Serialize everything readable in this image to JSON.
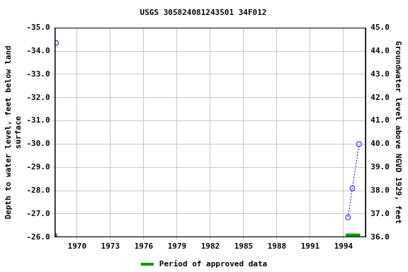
{
  "chart_data": {
    "type": "scatter",
    "title": "USGS 305824081243501 34F012",
    "y_label": "Depth to water level, feet below land surface",
    "y2_label": "Groundwater level above NGVD 1929, feet",
    "xlim": [
      1968,
      1996
    ],
    "xticks": [
      1970,
      1973,
      1976,
      1979,
      1982,
      1985,
      1988,
      1991,
      1994
    ],
    "ylim": [
      -26,
      -35
    ],
    "yticks": [
      {
        "value": -35,
        "label": "-35.0"
      },
      {
        "value": -34,
        "label": "-34.0"
      },
      {
        "value": -33,
        "label": "-33.0"
      },
      {
        "value": -32,
        "label": "-32.0"
      },
      {
        "value": -31,
        "label": "-31.0"
      },
      {
        "value": -30,
        "label": "-30.0"
      },
      {
        "value": -29,
        "label": "-29.0"
      },
      {
        "value": -28,
        "label": "-28.0"
      },
      {
        "value": -27,
        "label": "-27.0"
      },
      {
        "value": -26,
        "label": "-26.0"
      }
    ],
    "y2lim": [
      36,
      45
    ],
    "y2ticks": [
      {
        "value": 45,
        "label": "45.0"
      },
      {
        "value": 44,
        "label": "44.0"
      },
      {
        "value": 43,
        "label": "43.0"
      },
      {
        "value": 42,
        "label": "42.0"
      },
      {
        "value": 41,
        "label": "41.0"
      },
      {
        "value": 40,
        "label": "40.0"
      },
      {
        "value": 39,
        "label": "39.0"
      },
      {
        "value": 38,
        "label": "38.0"
      },
      {
        "value": 37,
        "label": "37.0"
      },
      {
        "value": 36,
        "label": "36.0"
      }
    ],
    "grid": true,
    "series": [
      {
        "x": [
          1968.1,
          null,
          1994.4,
          1994.8,
          1995.4
        ],
        "values": [
          -34.35,
          null,
          -26.85,
          -28.1,
          -30.0
        ],
        "color": "#0000cc",
        "marker": "circle",
        "line_style": "dotted"
      }
    ],
    "approved_periods": {
      "name": "Period of approved data",
      "color": "#009900",
      "ranges": [
        [
          1968.0,
          1968.2
        ],
        [
          1994.2,
          1995.5
        ]
      ]
    }
  }
}
